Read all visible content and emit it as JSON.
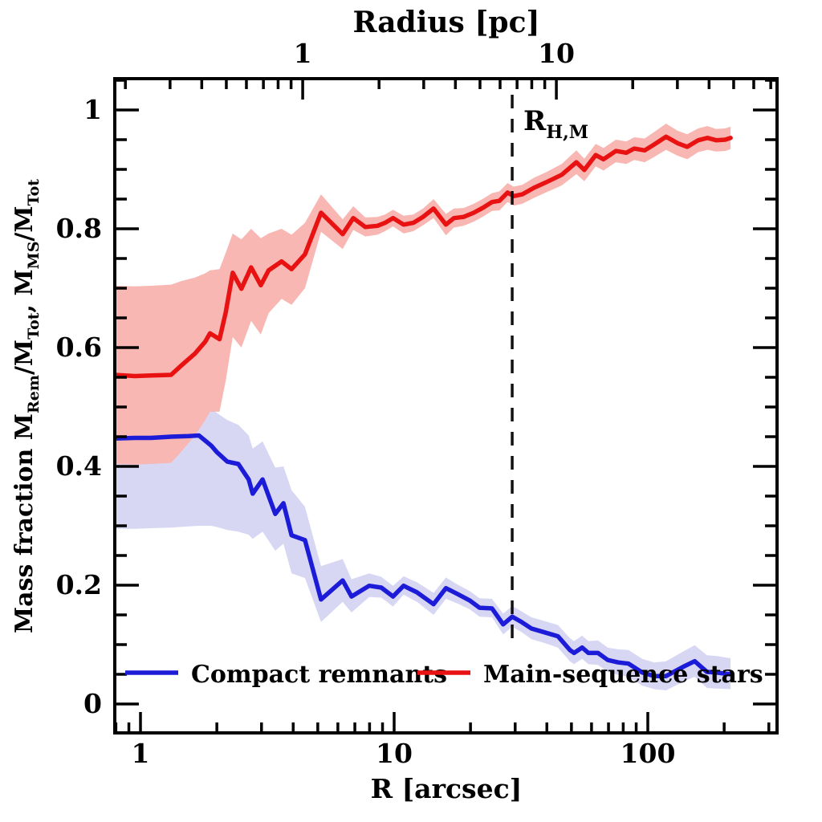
{
  "figure": {
    "background": "#ffffff"
  },
  "chart_data": {
    "type": "line",
    "x_axis": {
      "label": "R [arcsec]",
      "scale": "log",
      "range": [
        0.785,
        325
      ],
      "ticks": [
        {
          "v": 1,
          "label": "1"
        },
        {
          "v": 10,
          "label": "10"
        },
        {
          "v": 100,
          "label": "100"
        }
      ]
    },
    "top_axis": {
      "label": "Radius [pc]",
      "scale": "log",
      "arcsec_per_pc": 4.36,
      "range_pc": [
        0.18,
        74.5
      ],
      "ticks": [
        {
          "v": 1,
          "label": "1"
        },
        {
          "v": 10,
          "label": "10"
        }
      ]
    },
    "y_axis": {
      "label_text": "Mass fraction  M_Rem/M_Tot, M_MS/M_Tot",
      "label_parts": [
        {
          "t": "Mass fraction   M"
        },
        {
          "t": "Rem",
          "sub": true
        },
        {
          "t": "/M"
        },
        {
          "t": "Tot",
          "sub": true
        },
        {
          "t": ",  M"
        },
        {
          "t": "MS",
          "sub": true
        },
        {
          "t": "/M"
        },
        {
          "t": "Tot",
          "sub": true
        }
      ],
      "range": [
        -0.049,
        1.053
      ],
      "minor_step": 0.05,
      "ticks": [
        {
          "v": 0,
          "label": "0"
        },
        {
          "v": 0.2,
          "label": "0.2"
        },
        {
          "v": 0.4,
          "label": "0.4"
        },
        {
          "v": 0.6,
          "label": "0.6"
        },
        {
          "v": 0.8,
          "label": "0.8"
        },
        {
          "v": 1,
          "label": "1"
        }
      ]
    },
    "reference_line": {
      "x_arcsec": 29.2,
      "style": "dashed",
      "label_text": "R_H,M",
      "label_parts": [
        {
          "t": "R"
        },
        {
          "t": "H,M",
          "sub": true
        }
      ]
    },
    "legend": {
      "position": "inside-bottom",
      "entries": [
        "Compact remnants",
        "Main-sequence stars"
      ]
    },
    "series": [
      {
        "key": "compact-remnants",
        "name": "Compact remnants",
        "color": "#1c1cd8",
        "band_color": "#d7d7f4",
        "points_format": [
          "R_arcsec",
          "value",
          "band_lo",
          "band_hi"
        ],
        "points": [
          [
            0.79,
            0.447,
            0.295,
            0.5
          ],
          [
            0.95,
            0.448,
            0.295,
            0.5
          ],
          [
            1.1,
            0.448,
            0.296,
            0.501
          ],
          [
            1.32,
            0.45,
            0.297,
            0.502
          ],
          [
            1.55,
            0.451,
            0.299,
            0.504
          ],
          [
            1.7,
            0.452,
            0.3,
            0.505
          ],
          [
            1.9,
            0.435,
            0.3,
            0.498
          ],
          [
            2.0,
            0.424,
            0.298,
            0.49
          ],
          [
            2.2,
            0.408,
            0.293,
            0.478
          ],
          [
            2.43,
            0.404,
            0.29,
            0.47
          ],
          [
            2.67,
            0.378,
            0.285,
            0.452
          ],
          [
            2.77,
            0.354,
            0.278,
            0.43
          ],
          [
            3.03,
            0.378,
            0.29,
            0.442
          ],
          [
            3.4,
            0.32,
            0.258,
            0.398
          ],
          [
            3.66,
            0.338,
            0.27,
            0.4
          ],
          [
            3.94,
            0.284,
            0.22,
            0.36
          ],
          [
            4.45,
            0.276,
            0.212,
            0.332
          ],
          [
            5.15,
            0.176,
            0.138,
            0.232
          ],
          [
            6.27,
            0.208,
            0.172,
            0.244
          ],
          [
            6.79,
            0.181,
            0.154,
            0.21
          ],
          [
            7.97,
            0.199,
            0.18,
            0.22
          ],
          [
            8.9,
            0.196,
            0.179,
            0.214
          ],
          [
            9.9,
            0.181,
            0.164,
            0.199
          ],
          [
            10.9,
            0.199,
            0.184,
            0.215
          ],
          [
            12.3,
            0.188,
            0.172,
            0.205
          ],
          [
            14.3,
            0.168,
            0.15,
            0.187
          ],
          [
            16.0,
            0.195,
            0.177,
            0.213
          ],
          [
            17.8,
            0.185,
            0.169,
            0.201
          ],
          [
            19.9,
            0.174,
            0.159,
            0.19
          ],
          [
            21.7,
            0.162,
            0.147,
            0.178
          ],
          [
            24.3,
            0.161,
            0.146,
            0.177
          ],
          [
            26.9,
            0.134,
            0.117,
            0.152
          ],
          [
            29.2,
            0.147,
            0.13,
            0.165
          ],
          [
            31.8,
            0.138,
            0.121,
            0.156
          ],
          [
            34.8,
            0.127,
            0.109,
            0.146
          ],
          [
            39.6,
            0.12,
            0.102,
            0.139
          ],
          [
            44.2,
            0.114,
            0.095,
            0.133
          ],
          [
            49.3,
            0.091,
            0.072,
            0.111
          ],
          [
            51.2,
            0.086,
            0.067,
            0.106
          ],
          [
            55.1,
            0.095,
            0.076,
            0.115
          ],
          [
            58.3,
            0.086,
            0.067,
            0.106
          ],
          [
            63.6,
            0.086,
            0.066,
            0.107
          ],
          [
            69.5,
            0.074,
            0.054,
            0.095
          ],
          [
            76.4,
            0.07,
            0.049,
            0.092
          ],
          [
            83.9,
            0.068,
            0.046,
            0.091
          ],
          [
            95.1,
            0.053,
            0.031,
            0.076
          ],
          [
            106,
            0.047,
            0.025,
            0.07
          ],
          [
            118,
            0.047,
            0.023,
            0.072
          ],
          [
            140,
            0.064,
            0.039,
            0.09
          ],
          [
            153,
            0.072,
            0.046,
            0.099
          ],
          [
            171,
            0.054,
            0.027,
            0.082
          ],
          [
            186,
            0.053,
            0.026,
            0.081
          ],
          [
            212,
            0.05,
            0.025,
            0.077
          ]
        ]
      },
      {
        "key": "main-sequence-stars",
        "name": "Main-sequence stars",
        "color": "#e91212",
        "band_color": "#f8b7b3",
        "points_format": [
          "R_arcsec",
          "value",
          "band_lo",
          "band_hi"
        ],
        "points": [
          [
            0.79,
            0.554,
            0.404,
            0.704
          ],
          [
            0.95,
            0.552,
            0.403,
            0.703
          ],
          [
            1.1,
            0.553,
            0.404,
            0.704
          ],
          [
            1.32,
            0.554,
            0.406,
            0.706
          ],
          [
            1.45,
            0.57,
            0.425,
            0.712
          ],
          [
            1.64,
            0.59,
            0.452,
            0.718
          ],
          [
            1.8,
            0.61,
            0.478,
            0.725
          ],
          [
            1.88,
            0.624,
            0.492,
            0.73
          ],
          [
            2.05,
            0.614,
            0.492,
            0.732
          ],
          [
            2.17,
            0.66,
            0.545,
            0.76
          ],
          [
            2.31,
            0.726,
            0.618,
            0.792
          ],
          [
            2.5,
            0.699,
            0.6,
            0.782
          ],
          [
            2.73,
            0.735,
            0.645,
            0.8
          ],
          [
            2.98,
            0.705,
            0.622,
            0.784
          ],
          [
            3.2,
            0.73,
            0.658,
            0.792
          ],
          [
            3.6,
            0.745,
            0.682,
            0.8
          ],
          [
            3.94,
            0.732,
            0.672,
            0.79
          ],
          [
            4.45,
            0.757,
            0.7,
            0.81
          ],
          [
            5.15,
            0.827,
            0.795,
            0.858
          ],
          [
            6.27,
            0.791,
            0.766,
            0.816
          ],
          [
            6.9,
            0.818,
            0.798,
            0.838
          ],
          [
            7.7,
            0.803,
            0.787,
            0.819
          ],
          [
            8.6,
            0.805,
            0.79,
            0.82
          ],
          [
            9.2,
            0.81,
            0.796,
            0.824
          ],
          [
            9.9,
            0.818,
            0.804,
            0.832
          ],
          [
            10.9,
            0.807,
            0.792,
            0.822
          ],
          [
            11.9,
            0.81,
            0.796,
            0.824
          ],
          [
            13.0,
            0.82,
            0.806,
            0.834
          ],
          [
            14.3,
            0.834,
            0.818,
            0.85
          ],
          [
            16.0,
            0.807,
            0.789,
            0.825
          ],
          [
            17.2,
            0.818,
            0.802,
            0.834
          ],
          [
            18.8,
            0.82,
            0.805,
            0.835
          ],
          [
            20.6,
            0.827,
            0.812,
            0.842
          ],
          [
            22.5,
            0.836,
            0.821,
            0.851
          ],
          [
            24.3,
            0.845,
            0.83,
            0.86
          ],
          [
            26.0,
            0.847,
            0.831,
            0.863
          ],
          [
            28.0,
            0.861,
            0.845,
            0.877
          ],
          [
            29.6,
            0.855,
            0.839,
            0.871
          ],
          [
            32.0,
            0.858,
            0.842,
            0.874
          ],
          [
            35.6,
            0.869,
            0.852,
            0.886
          ],
          [
            39.6,
            0.878,
            0.861,
            0.895
          ],
          [
            45.8,
            0.891,
            0.873,
            0.909
          ],
          [
            52.3,
            0.912,
            0.892,
            0.932
          ],
          [
            56.2,
            0.899,
            0.88,
            0.918
          ],
          [
            62.3,
            0.924,
            0.905,
            0.943
          ],
          [
            66.9,
            0.917,
            0.898,
            0.936
          ],
          [
            74.8,
            0.931,
            0.912,
            0.95
          ],
          [
            82.2,
            0.928,
            0.909,
            0.947
          ],
          [
            88.4,
            0.935,
            0.916,
            0.954
          ],
          [
            97.2,
            0.932,
            0.912,
            0.952
          ],
          [
            106,
            0.942,
            0.921,
            0.963
          ],
          [
            118,
            0.955,
            0.933,
            0.977
          ],
          [
            131,
            0.944,
            0.923,
            0.965
          ],
          [
            143,
            0.938,
            0.917,
            0.959
          ],
          [
            158,
            0.949,
            0.929,
            0.969
          ],
          [
            172,
            0.953,
            0.933,
            0.973
          ],
          [
            186,
            0.949,
            0.93,
            0.968
          ],
          [
            202,
            0.95,
            0.931,
            0.969
          ],
          [
            212,
            0.953,
            0.934,
            0.972
          ]
        ]
      }
    ]
  }
}
